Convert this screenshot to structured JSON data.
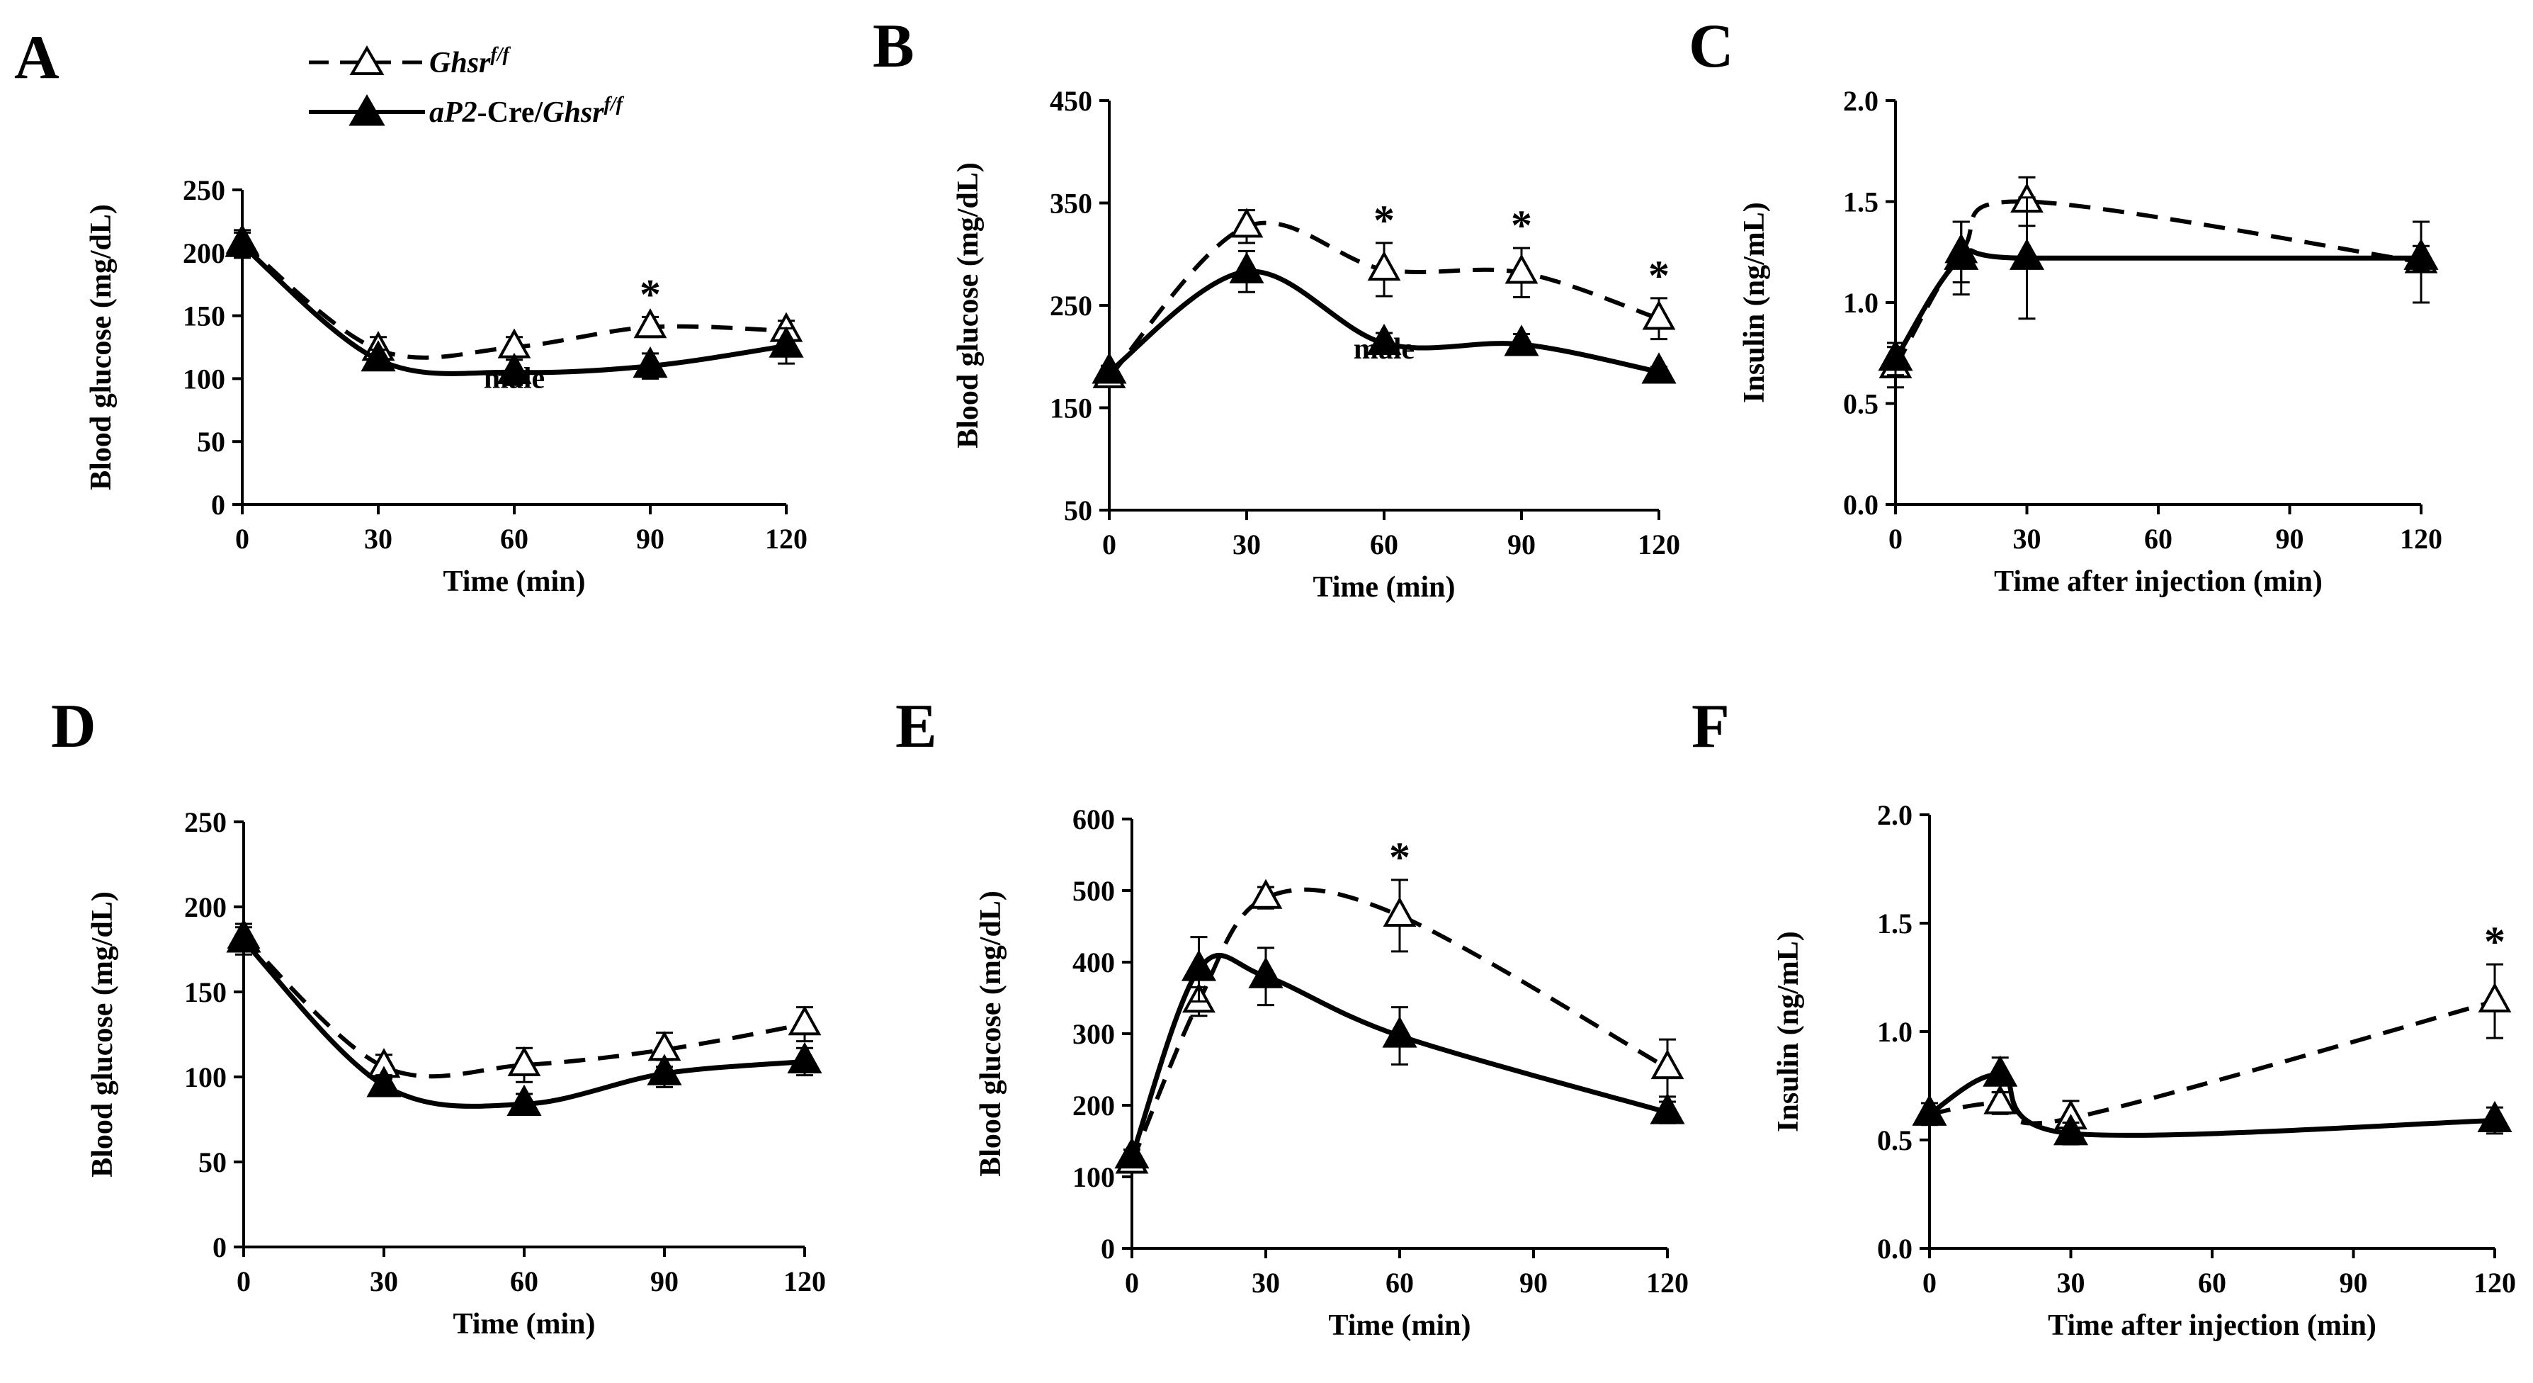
{
  "legend": {
    "series1_gene": "Ghsr",
    "series1_sup": "f/f",
    "series2_prefix": "aP2",
    "series2_mid": "-Cre/",
    "series2_gene": "Ghsr",
    "series2_sup": "f/f"
  },
  "colors": {
    "ink": "#000000",
    "open_marker_fill": "#ffffff",
    "background": "#ffffff"
  },
  "chart_data": [
    {
      "panel": "A",
      "type": "line",
      "xlabel": "Time (min)",
      "ylabel": "Blood glucose (mg/dL)",
      "xlim": [
        0,
        120
      ],
      "ylim": [
        0,
        250
      ],
      "xticks": [
        0,
        30,
        60,
        90,
        120
      ],
      "yticks": [
        0,
        50,
        100,
        150,
        200,
        250
      ],
      "ytick_labels": [
        "0",
        "50",
        "100",
        "150",
        "200",
        "250"
      ],
      "note": "male",
      "series": [
        {
          "style": "dashed-open-triangle",
          "x": [
            0,
            30,
            60,
            90,
            120
          ],
          "y": [
            208,
            123,
            125,
            141,
            138
          ],
          "err": [
            10,
            10,
            8,
            8,
            8
          ]
        },
        {
          "style": "solid-filled-triangle",
          "x": [
            0,
            30,
            60,
            90,
            120
          ],
          "y": [
            206,
            115,
            105,
            110,
            126
          ],
          "err": [
            10,
            8,
            10,
            10,
            14
          ]
        }
      ],
      "significance": [
        {
          "x": 90,
          "label": "*"
        }
      ]
    },
    {
      "panel": "B",
      "type": "line",
      "xlabel": "Time (min)",
      "ylabel": "Blood glucose (mg/dL)",
      "xlim": [
        0,
        120
      ],
      "ylim": [
        50,
        450
      ],
      "xticks": [
        0,
        30,
        60,
        90,
        120
      ],
      "yticks": [
        50,
        150,
        250,
        350,
        450
      ],
      "ytick_labels": [
        "50",
        "150",
        "250",
        "350",
        "450"
      ],
      "note": "male",
      "series": [
        {
          "style": "dashed-open-triangle",
          "x": [
            0,
            30,
            60,
            90,
            120
          ],
          "y": [
            180,
            327,
            285,
            282,
            237
          ],
          "err": [
            8,
            16,
            26,
            24,
            20
          ]
        },
        {
          "style": "solid-filled-triangle",
          "x": [
            0,
            30,
            60,
            90,
            120
          ],
          "y": [
            185,
            283,
            213,
            212,
            185
          ],
          "err": [
            6,
            20,
            10,
            10,
            5
          ]
        }
      ],
      "significance": [
        {
          "x": 60,
          "label": "*"
        },
        {
          "x": 90,
          "label": "*"
        },
        {
          "x": 120,
          "label": "*"
        }
      ]
    },
    {
      "panel": "C",
      "type": "line",
      "xlabel": "Time after injection (min)",
      "ylabel": "Insulin (ng/mL)",
      "xlim": [
        0,
        120
      ],
      "ylim": [
        0.0,
        2.0
      ],
      "xticks": [
        0,
        30,
        60,
        90,
        120
      ],
      "yticks": [
        0.0,
        0.5,
        1.0,
        1.5,
        2.0
      ],
      "ytick_labels": [
        "0.0",
        "0.5",
        "1.0",
        "1.5",
        "2.0"
      ],
      "note": "",
      "series": [
        {
          "style": "dashed-open-triangle",
          "x": [
            0,
            15,
            30,
            120
          ],
          "y": [
            0.68,
            1.25,
            1.5,
            1.2
          ],
          "err": [
            0.1,
            0.15,
            0.12,
            0.2
          ]
        },
        {
          "style": "solid-filled-triangle",
          "x": [
            0,
            15,
            30,
            120
          ],
          "y": [
            0.72,
            1.22,
            1.22,
            1.22
          ],
          "err": [
            0.08,
            0.18,
            0.3,
            0.06
          ]
        }
      ],
      "significance": []
    },
    {
      "panel": "D",
      "type": "line",
      "xlabel": "Time (min)",
      "ylabel": "Blood glucose (mg/dL)",
      "xlim": [
        0,
        120
      ],
      "ylim": [
        0,
        250
      ],
      "xticks": [
        0,
        30,
        60,
        90,
        120
      ],
      "yticks": [
        0,
        50,
        100,
        150,
        200,
        250
      ],
      "ytick_labels": [
        "0",
        "50",
        "100",
        "150",
        "200",
        "250"
      ],
      "note": "",
      "series": [
        {
          "style": "dashed-open-triangle",
          "x": [
            0,
            30,
            60,
            90,
            120
          ],
          "y": [
            182,
            106,
            107,
            116,
            131
          ],
          "err": [
            8,
            7,
            10,
            10,
            10
          ]
        },
        {
          "style": "solid-filled-triangle",
          "x": [
            0,
            30,
            60,
            90,
            120
          ],
          "y": [
            180,
            95,
            84,
            102,
            109
          ],
          "err": [
            8,
            6,
            6,
            8,
            8
          ]
        }
      ],
      "significance": []
    },
    {
      "panel": "E",
      "type": "line",
      "xlabel": "Time (min)",
      "ylabel": "Blood glucose (mg/dL)",
      "xlim": [
        0,
        120
      ],
      "ylim": [
        0,
        600
      ],
      "xticks": [
        0,
        30,
        60,
        90,
        120
      ],
      "yticks": [
        0,
        100,
        200,
        300,
        400,
        500,
        600
      ],
      "ytick_labels": [
        "0",
        "100",
        "200",
        "300",
        "400",
        "500",
        "600"
      ],
      "note": "",
      "series": [
        {
          "style": "dashed-open-triangle",
          "x": [
            0,
            15,
            30,
            60,
            120
          ],
          "y": [
            120,
            345,
            490,
            465,
            252
          ],
          "err": [
            10,
            20,
            15,
            50,
            40
          ]
        },
        {
          "style": "solid-filled-triangle",
          "x": [
            0,
            15,
            30,
            60,
            120
          ],
          "y": [
            128,
            390,
            380,
            297,
            190
          ],
          "err": [
            10,
            45,
            40,
            40,
            15
          ]
        }
      ],
      "significance": [
        {
          "x": 60,
          "label": "*"
        }
      ]
    },
    {
      "panel": "F",
      "type": "line",
      "xlabel": "Time after injection (min)",
      "ylabel": "Insulin (ng/mL)",
      "xlim": [
        0,
        120
      ],
      "ylim": [
        0.0,
        2.0
      ],
      "xticks": [
        0,
        30,
        60,
        90,
        120
      ],
      "yticks": [
        0.0,
        0.5,
        1.0,
        1.5,
        2.0
      ],
      "ytick_labels": [
        "0.0",
        "0.5",
        "1.0",
        "1.5",
        "2.0"
      ],
      "note": "",
      "series": [
        {
          "style": "dashed-open-triangle",
          "x": [
            0,
            15,
            30,
            120
          ],
          "y": [
            0.62,
            0.67,
            0.6,
            1.14
          ],
          "err": [
            0.05,
            0.05,
            0.08,
            0.17
          ]
        },
        {
          "style": "solid-filled-triangle",
          "x": [
            0,
            15,
            30,
            120
          ],
          "y": [
            0.62,
            0.8,
            0.53,
            0.59
          ],
          "err": [
            0.05,
            0.08,
            0.05,
            0.06
          ]
        }
      ],
      "significance": [
        {
          "x": 120,
          "label": "*"
        }
      ]
    }
  ]
}
